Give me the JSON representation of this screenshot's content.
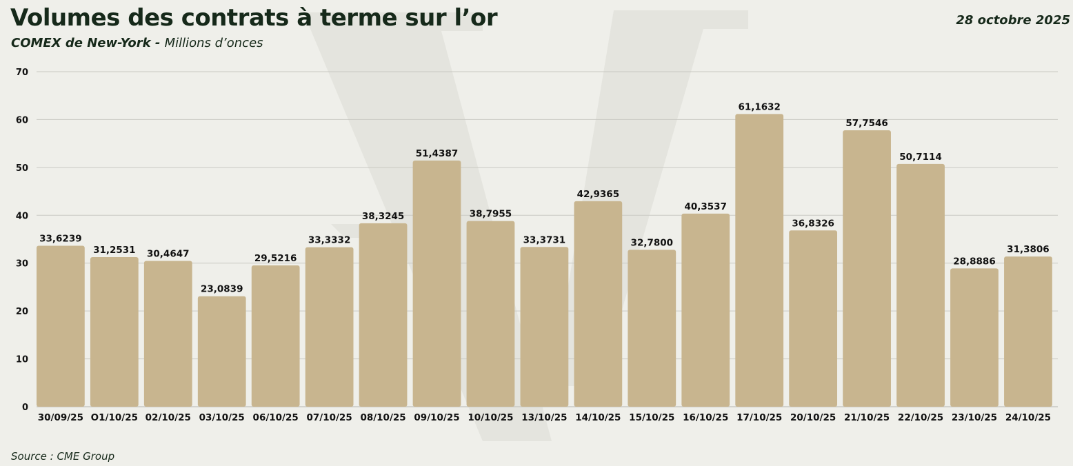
{
  "header": {
    "title": "Volumes des contrats à terme sur l’or",
    "subtitle_strong": "COMEX de New-York",
    "subtitle_sep": " - ",
    "subtitle_unit": "Millions d’onces",
    "date": "28 octobre 2025"
  },
  "footer": {
    "source": "Source : CME Group"
  },
  "colors": {
    "bar": "#c8b58f",
    "grid": "#c9c9c3",
    "text": "#16291a",
    "background": "#efefea"
  },
  "chart_data": {
    "type": "bar",
    "title": "Volumes des contrats à terme sur l’or",
    "subtitle": "COMEX de New-York - Millions d’onces",
    "xlabel": "",
    "ylabel": "",
    "ylim": [
      0,
      70
    ],
    "yticks": [
      0,
      10,
      20,
      30,
      40,
      50,
      60,
      70
    ],
    "grid": true,
    "legend": "none",
    "categories": [
      "30/09/25",
      "O1/10/25",
      "02/10/25",
      "03/10/25",
      "06/10/25",
      "07/10/25",
      "08/10/25",
      "09/10/25",
      "10/10/25",
      "13/10/25",
      "14/10/25",
      "15/10/25",
      "16/10/25",
      "17/10/25",
      "20/10/25",
      "21/10/25",
      "22/10/25",
      "23/10/25",
      "24/10/25"
    ],
    "values": [
      33.6239,
      31.2531,
      30.4647,
      23.0839,
      29.5216,
      33.3332,
      38.3245,
      51.4387,
      38.7955,
      33.3731,
      42.9365,
      32.78,
      40.3537,
      61.1632,
      36.8326,
      57.7546,
      50.7114,
      28.8886,
      31.3806
    ],
    "value_labels": [
      "33,6239",
      "31,2531",
      "30,4647",
      "23,0839",
      "29,5216",
      "33,3332",
      "38,3245",
      "51,4387",
      "38,7955",
      "33,3731",
      "42,9365",
      "32,7800",
      "40,3537",
      "61,1632",
      "36,8326",
      "57,7546",
      "50,7114",
      "28,8886",
      "31,3806"
    ]
  }
}
